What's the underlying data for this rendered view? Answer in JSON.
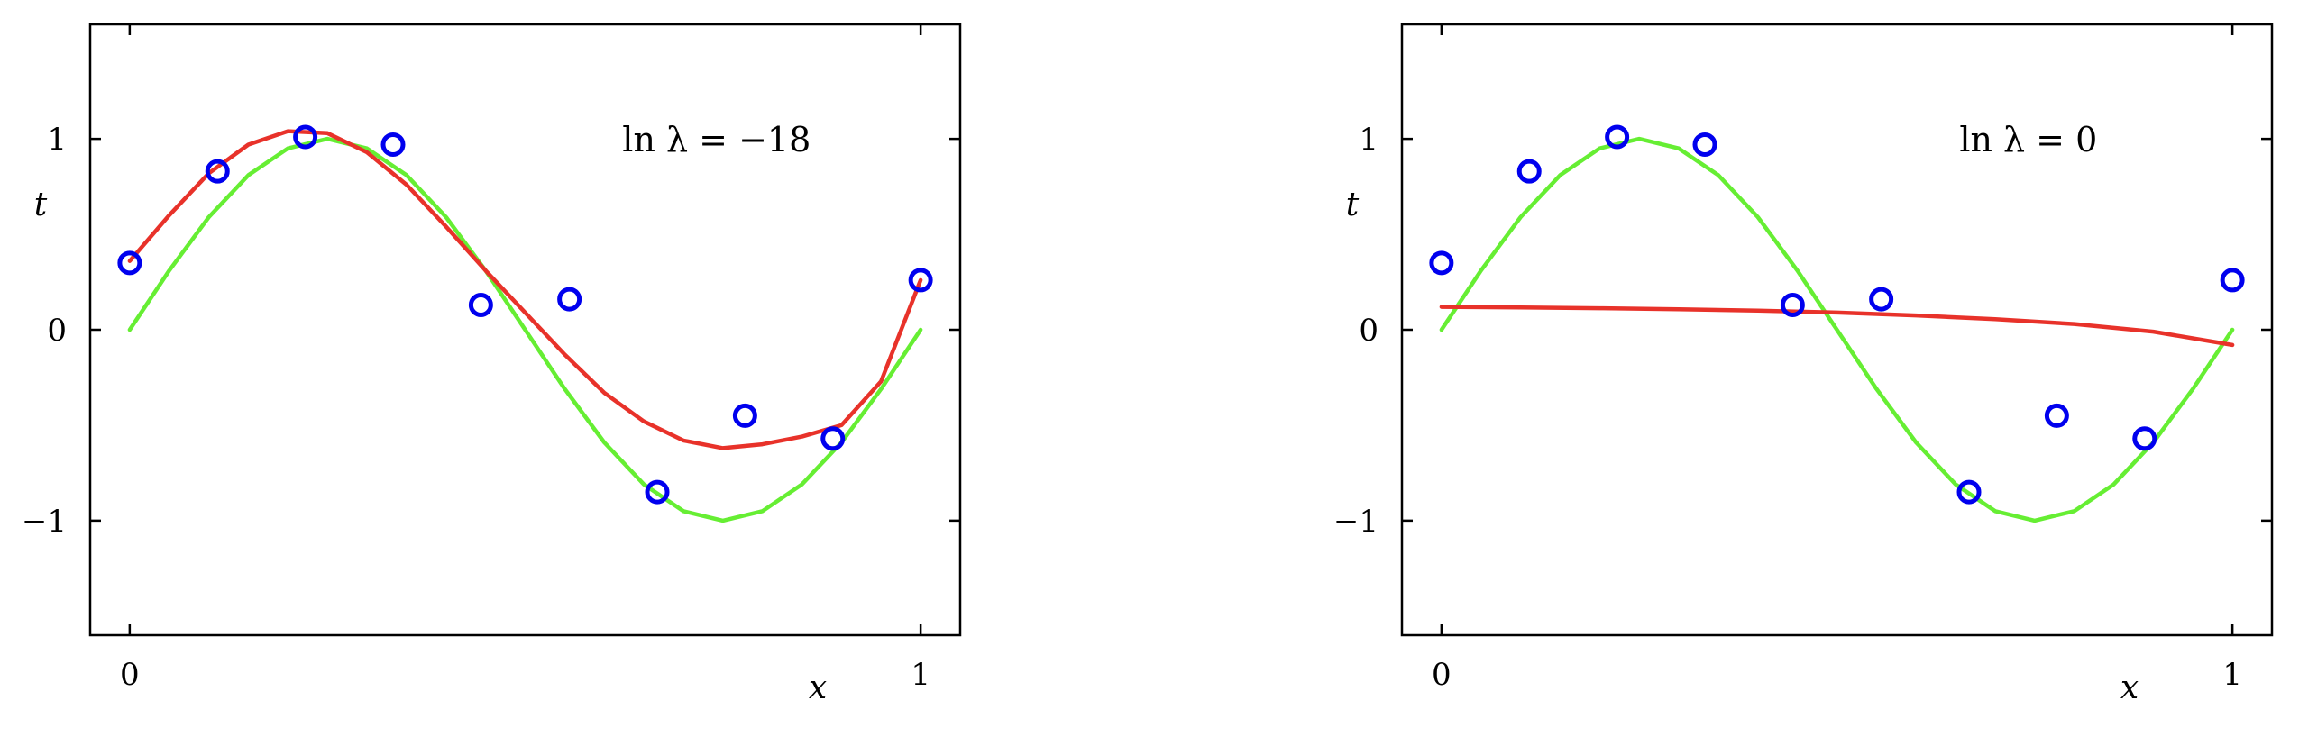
{
  "chart_data": [
    {
      "type": "line",
      "title": "",
      "annotation": "ln λ = −18",
      "xlabel": "x",
      "ylabel": "t",
      "xlim": [
        -0.05,
        1.05
      ],
      "ylim": [
        -1.6,
        1.6
      ],
      "xticks": [
        {
          "value": 0,
          "label": "0"
        },
        {
          "value": 1,
          "label": "1"
        }
      ],
      "yticks": [
        {
          "value": -1,
          "label": "−1"
        },
        {
          "value": 0,
          "label": "0"
        },
        {
          "value": 1,
          "label": "1"
        }
      ],
      "grid": false,
      "colors": {
        "points": "#0000ee",
        "truth": "#66ee33",
        "fit": "#e8322a"
      },
      "points": {
        "x": [
          0,
          0.111,
          0.222,
          0.333,
          0.444,
          0.556,
          0.667,
          0.778,
          0.889,
          1
        ],
        "y": [
          0.35,
          0.83,
          1.01,
          0.97,
          0.13,
          0.16,
          -0.85,
          -0.45,
          -0.57,
          0.26
        ]
      },
      "series": [
        {
          "role": "truth",
          "x": [
            0,
            0.05,
            0.1,
            0.15,
            0.2,
            0.25,
            0.3,
            0.35,
            0.4,
            0.45,
            0.5,
            0.55,
            0.6,
            0.65,
            0.7,
            0.75,
            0.8,
            0.85,
            0.9,
            0.95,
            1
          ],
          "y": [
            0,
            0.31,
            0.59,
            0.81,
            0.95,
            1,
            0.95,
            0.81,
            0.59,
            0.31,
            0,
            -0.31,
            -0.59,
            -0.81,
            -0.95,
            -1,
            -0.95,
            -0.81,
            -0.59,
            -0.31,
            0
          ]
        },
        {
          "role": "fit",
          "x": [
            0,
            0.05,
            0.1,
            0.15,
            0.2,
            0.25,
            0.3,
            0.35,
            0.4,
            0.45,
            0.5,
            0.55,
            0.6,
            0.65,
            0.7,
            0.75,
            0.8,
            0.85,
            0.9,
            0.95,
            1
          ],
          "y": [
            0.36,
            0.6,
            0.82,
            0.97,
            1.04,
            1.03,
            0.93,
            0.76,
            0.54,
            0.31,
            0.09,
            -0.13,
            -0.33,
            -0.48,
            -0.58,
            -0.62,
            -0.6,
            -0.56,
            -0.5,
            -0.27,
            0.26
          ]
        }
      ]
    },
    {
      "type": "line",
      "title": "",
      "annotation": "ln λ = 0",
      "xlabel": "x",
      "ylabel": "t",
      "xlim": [
        -0.05,
        1.05
      ],
      "ylim": [
        -1.6,
        1.6
      ],
      "xticks": [
        {
          "value": 0,
          "label": "0"
        },
        {
          "value": 1,
          "label": "1"
        }
      ],
      "yticks": [
        {
          "value": -1,
          "label": "−1"
        },
        {
          "value": 0,
          "label": "0"
        },
        {
          "value": 1,
          "label": "1"
        }
      ],
      "grid": false,
      "colors": {
        "points": "#0000ee",
        "truth": "#66ee33",
        "fit": "#e8322a"
      },
      "points": {
        "x": [
          0,
          0.111,
          0.222,
          0.333,
          0.444,
          0.556,
          0.667,
          0.778,
          0.889,
          1
        ],
        "y": [
          0.35,
          0.83,
          1.01,
          0.97,
          0.13,
          0.16,
          -0.85,
          -0.45,
          -0.57,
          0.26
        ]
      },
      "series": [
        {
          "role": "truth",
          "x": [
            0,
            0.05,
            0.1,
            0.15,
            0.2,
            0.25,
            0.3,
            0.35,
            0.4,
            0.45,
            0.5,
            0.55,
            0.6,
            0.65,
            0.7,
            0.75,
            0.8,
            0.85,
            0.9,
            0.95,
            1
          ],
          "y": [
            0,
            0.31,
            0.59,
            0.81,
            0.95,
            1,
            0.95,
            0.81,
            0.59,
            0.31,
            0,
            -0.31,
            -0.59,
            -0.81,
            -0.95,
            -1,
            -0.95,
            -0.81,
            -0.59,
            -0.31,
            0
          ]
        },
        {
          "role": "fit",
          "x": [
            0,
            0.1,
            0.2,
            0.3,
            0.4,
            0.5,
            0.6,
            0.7,
            0.8,
            0.9,
            1
          ],
          "y": [
            0.12,
            0.117,
            0.113,
            0.107,
            0.1,
            0.09,
            0.075,
            0.055,
            0.03,
            -0.01,
            -0.08
          ]
        }
      ]
    }
  ]
}
